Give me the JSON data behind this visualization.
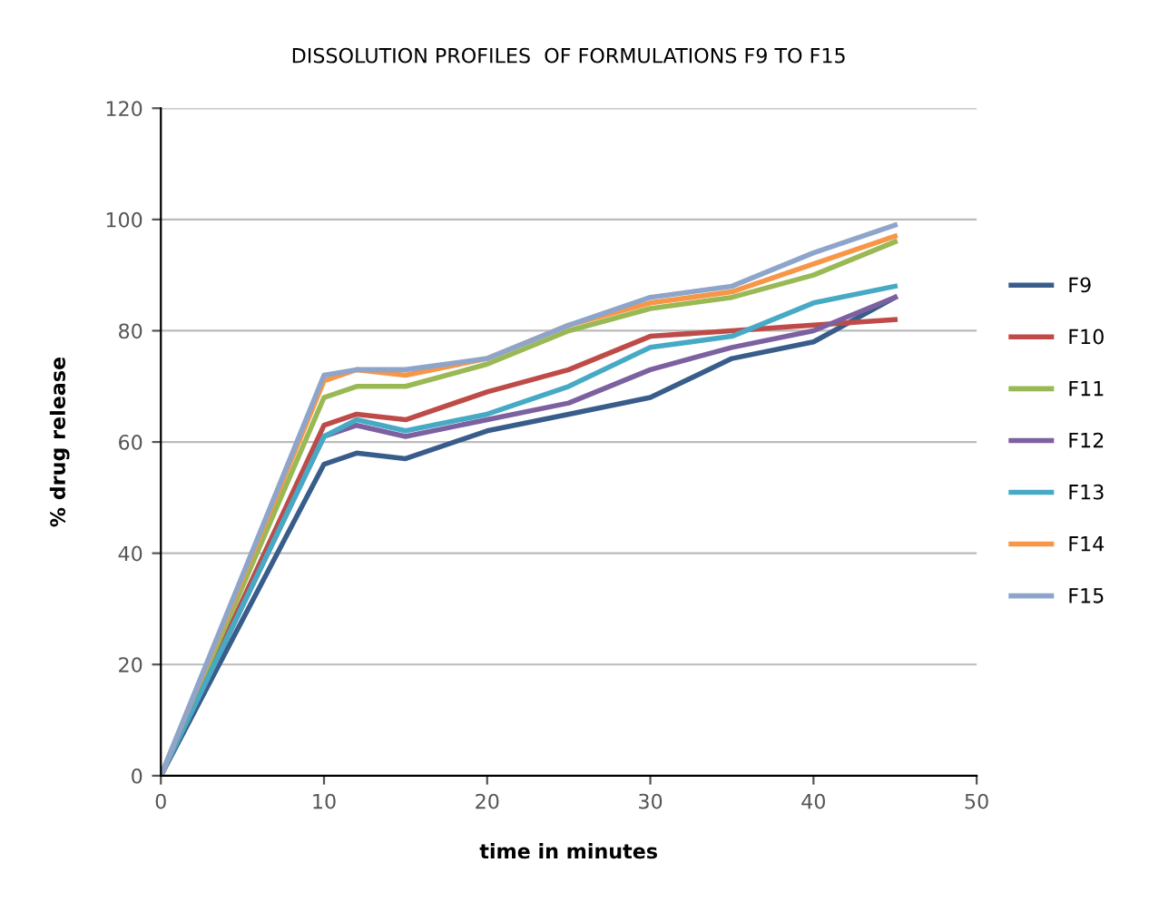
{
  "chart_data": {
    "type": "line",
    "title": "DISSOLUTION PROFILES  OF FORMULATIONS F9 TO F15",
    "xlabel": "time in minutes",
    "ylabel": "% drug release",
    "x": [
      0,
      10,
      12,
      15,
      20,
      25,
      30,
      35,
      40,
      45
    ],
    "series": [
      {
        "name": "F9",
        "color": "#385d8a",
        "values": [
          0,
          56,
          58,
          57,
          62,
          65,
          68,
          75,
          78,
          86
        ]
      },
      {
        "name": "F10",
        "color": "#be4b48",
        "values": [
          0,
          63,
          65,
          64,
          69,
          73,
          79,
          80,
          81,
          82
        ]
      },
      {
        "name": "F11",
        "color": "#98b954",
        "values": [
          0,
          68,
          70,
          70,
          74,
          80,
          84,
          86,
          90,
          96
        ]
      },
      {
        "name": "F12",
        "color": "#7d60a0",
        "values": [
          0,
          61,
          63,
          61,
          64,
          67,
          73,
          77,
          80,
          86
        ]
      },
      {
        "name": "F13",
        "color": "#46aac5",
        "values": [
          0,
          61,
          64,
          62,
          65,
          70,
          77,
          79,
          85,
          88
        ]
      },
      {
        "name": "F14",
        "color": "#f79646",
        "values": [
          0,
          71,
          73,
          72,
          75,
          81,
          85,
          87,
          92,
          97
        ]
      },
      {
        "name": "F15",
        "color": "#8ea5cb",
        "values": [
          0,
          72,
          73,
          73,
          75,
          81,
          86,
          88,
          94,
          99
        ]
      }
    ],
    "xlim": [
      0,
      50
    ],
    "xticks": [
      0,
      10,
      20,
      30,
      40,
      50
    ],
    "ylim": [
      0,
      120
    ],
    "yticks": [
      0,
      20,
      40,
      60,
      80,
      100,
      120
    ],
    "grid": "y",
    "legend": "right",
    "marker": "none",
    "line_style": "solid"
  }
}
